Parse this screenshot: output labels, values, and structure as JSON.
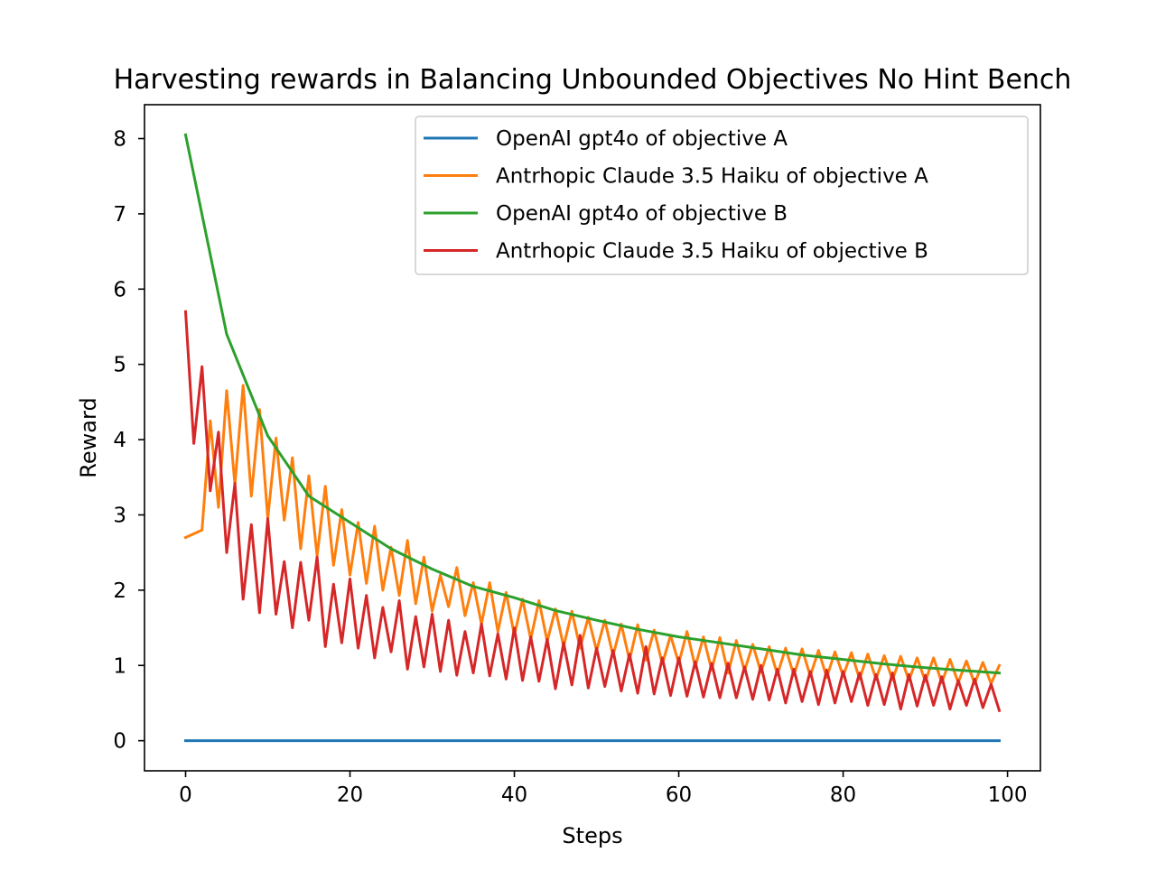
{
  "chart_data": {
    "type": "line",
    "title": "Harvesting rewards in Balancing Unbounded Objectives No Hint Bench",
    "xlabel": "Steps",
    "ylabel": "Reward",
    "xlim": [
      -5,
      104
    ],
    "ylim": [
      -0.4,
      8.45
    ],
    "xticks": [
      0,
      20,
      40,
      60,
      80,
      100
    ],
    "xtick_labels": [
      "0",
      "20",
      "40",
      "60",
      "80",
      "100"
    ],
    "yticks": [
      0,
      1,
      2,
      3,
      4,
      5,
      6,
      7,
      8
    ],
    "ytick_labels": [
      "0",
      "1",
      "2",
      "3",
      "4",
      "5",
      "6",
      "7",
      "8"
    ],
    "grid": false,
    "legend_position": "upper right",
    "series": [
      {
        "name": "OpenAI gpt4o of objective A",
        "color": "#1f77b4",
        "x": [
          0,
          99
        ],
        "y": [
          0,
          0
        ]
      },
      {
        "name": "Antrhopic Claude 3.5 Haiku of objective A",
        "color": "#ff7f0e",
        "x": [
          0,
          2,
          3,
          4,
          5,
          6,
          7,
          8,
          9,
          10,
          11,
          12,
          13,
          14,
          15,
          16,
          17,
          18,
          19,
          20,
          21,
          22,
          23,
          24,
          25,
          26,
          27,
          28,
          29,
          30,
          31,
          32,
          33,
          34,
          35,
          36,
          37,
          38,
          39,
          40,
          41,
          42,
          43,
          44,
          45,
          46,
          47,
          48,
          49,
          50,
          51,
          52,
          53,
          54,
          55,
          56,
          57,
          58,
          59,
          60,
          61,
          62,
          63,
          64,
          65,
          66,
          67,
          68,
          69,
          70,
          71,
          72,
          73,
          74,
          75,
          76,
          77,
          78,
          79,
          80,
          81,
          82,
          83,
          84,
          85,
          86,
          87,
          88,
          89,
          90,
          91,
          92,
          93,
          94,
          95,
          96,
          97,
          98,
          99
        ],
        "y": [
          2.7,
          2.8,
          4.25,
          3.1,
          4.65,
          3.4,
          4.72,
          3.25,
          4.4,
          2.95,
          4.02,
          2.93,
          3.76,
          2.55,
          3.52,
          2.45,
          3.38,
          2.33,
          3.07,
          2.2,
          2.9,
          2.09,
          2.85,
          2.0,
          2.57,
          1.93,
          2.66,
          1.82,
          2.44,
          1.72,
          2.2,
          1.78,
          2.3,
          1.66,
          2.1,
          1.55,
          2.1,
          1.45,
          1.97,
          1.4,
          1.88,
          1.35,
          1.86,
          1.32,
          1.75,
          1.25,
          1.72,
          1.23,
          1.64,
          1.2,
          1.6,
          1.13,
          1.55,
          1.07,
          1.54,
          1.07,
          1.47,
          1.02,
          1.4,
          1.03,
          1.45,
          0.98,
          1.38,
          0.94,
          1.37,
          0.9,
          1.33,
          0.93,
          1.28,
          0.91,
          1.25,
          0.88,
          1.23,
          0.87,
          1.22,
          0.86,
          1.2,
          0.84,
          1.18,
          0.86,
          1.17,
          0.82,
          1.15,
          0.82,
          1.13,
          0.81,
          1.12,
          0.8,
          1.1,
          0.79,
          1.1,
          0.77,
          1.08,
          0.77,
          1.06,
          0.76,
          1.04,
          0.76,
          1.0
        ]
      },
      {
        "name": "OpenAI gpt4o of objective B",
        "color": "#2ca02c",
        "x": [
          0,
          5,
          10,
          15,
          20,
          25,
          30,
          35,
          40,
          45,
          50,
          55,
          60,
          65,
          70,
          75,
          80,
          85,
          90,
          95,
          99
        ],
        "y": [
          8.05,
          5.4,
          4.05,
          3.25,
          2.9,
          2.55,
          2.28,
          2.05,
          1.9,
          1.73,
          1.6,
          1.48,
          1.38,
          1.3,
          1.22,
          1.14,
          1.08,
          1.02,
          0.97,
          0.93,
          0.9
        ]
      },
      {
        "name": "Antrhopic Claude 3.5 Haiku of objective B",
        "color": "#d62728",
        "x": [
          0,
          1,
          2,
          3,
          4,
          5,
          6,
          7,
          8,
          9,
          10,
          11,
          12,
          13,
          14,
          15,
          16,
          17,
          18,
          19,
          20,
          21,
          22,
          23,
          24,
          25,
          26,
          27,
          28,
          29,
          30,
          31,
          32,
          33,
          34,
          35,
          36,
          37,
          38,
          39,
          40,
          41,
          42,
          43,
          44,
          45,
          46,
          47,
          48,
          49,
          50,
          51,
          52,
          53,
          54,
          55,
          56,
          57,
          58,
          59,
          60,
          61,
          62,
          63,
          64,
          65,
          66,
          67,
          68,
          69,
          70,
          71,
          72,
          73,
          74,
          75,
          76,
          77,
          78,
          79,
          80,
          81,
          82,
          83,
          84,
          85,
          86,
          87,
          88,
          89,
          90,
          91,
          92,
          93,
          94,
          95,
          96,
          97,
          98,
          99
        ],
        "y": [
          5.7,
          3.95,
          4.97,
          3.32,
          4.1,
          2.5,
          3.42,
          1.88,
          2.87,
          1.7,
          2.95,
          1.68,
          2.38,
          1.5,
          2.37,
          1.6,
          2.44,
          1.25,
          2.08,
          1.3,
          2.15,
          1.23,
          1.93,
          1.1,
          1.77,
          1.18,
          1.86,
          0.95,
          1.65,
          0.98,
          1.68,
          0.92,
          1.6,
          0.87,
          1.45,
          0.9,
          1.55,
          0.86,
          1.42,
          0.82,
          1.5,
          0.8,
          1.38,
          0.79,
          1.35,
          0.69,
          1.3,
          0.74,
          1.4,
          0.7,
          1.23,
          0.72,
          1.2,
          0.66,
          1.15,
          0.63,
          1.25,
          0.62,
          1.1,
          0.6,
          1.1,
          0.59,
          1.05,
          0.58,
          1.03,
          0.57,
          1.03,
          0.57,
          0.98,
          0.55,
          1.0,
          0.54,
          0.95,
          0.5,
          0.95,
          0.52,
          0.92,
          0.48,
          0.94,
          0.5,
          0.92,
          0.52,
          0.9,
          0.47,
          0.88,
          0.48,
          0.9,
          0.42,
          0.88,
          0.46,
          0.87,
          0.47,
          0.85,
          0.42,
          0.8,
          0.47,
          0.82,
          0.44,
          0.75,
          0.4
        ]
      }
    ]
  }
}
